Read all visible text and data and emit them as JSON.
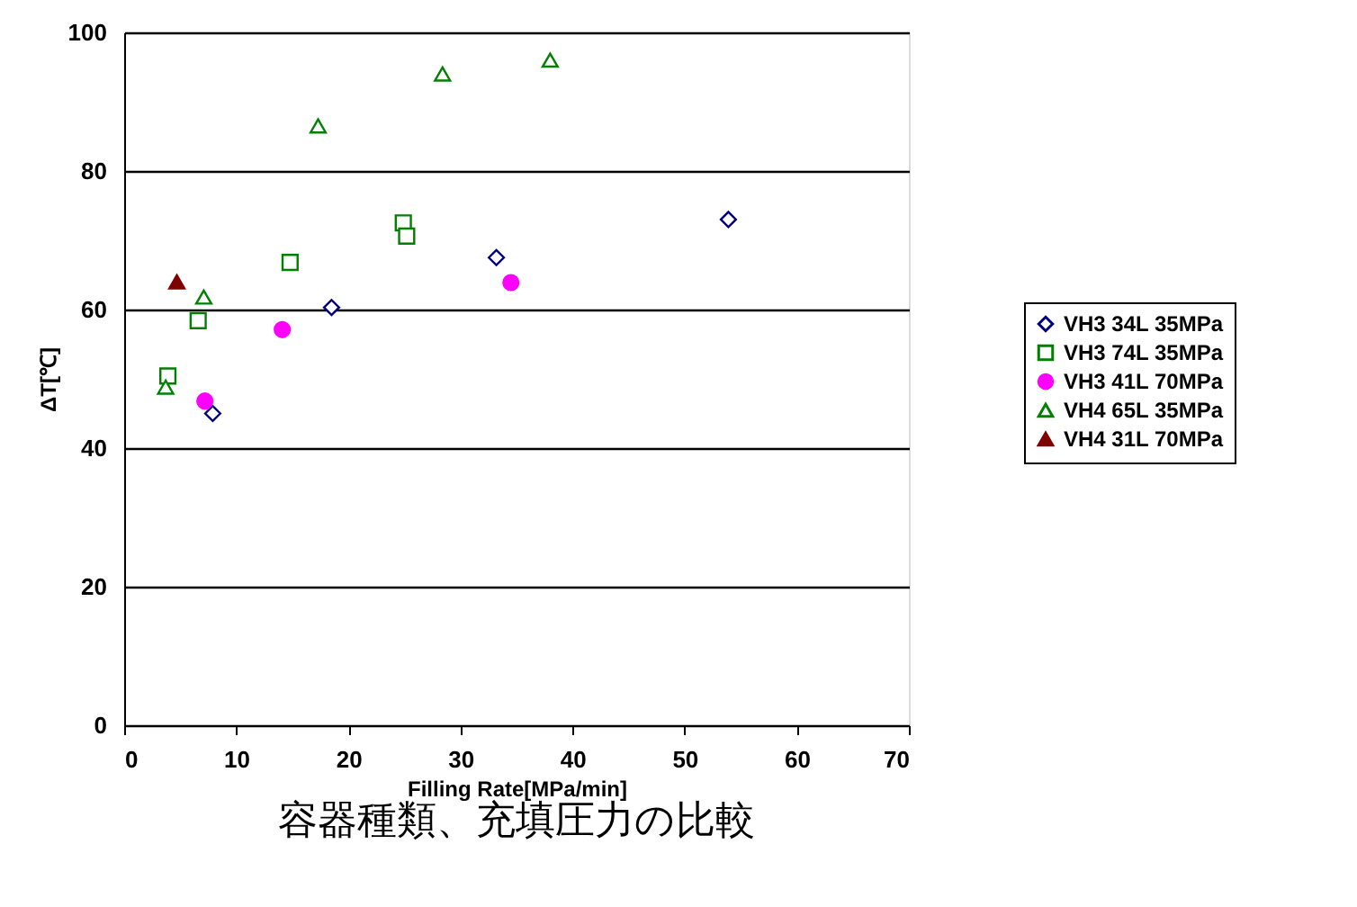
{
  "chart_data": {
    "type": "scatter",
    "title": "容器種類、充填圧力の比較",
    "xlabel": "Filling Rate[MPa/min]",
    "ylabel": "ΔT[℃]",
    "xlim": [
      0,
      70
    ],
    "xticks": [
      0,
      10,
      20,
      30,
      40,
      50,
      60,
      70
    ],
    "ylim": [
      0,
      100
    ],
    "yticks": [
      0,
      20,
      40,
      60,
      80,
      100
    ],
    "grid": "y",
    "legend": "right",
    "series": [
      {
        "name": "VH3 34L 35MPa",
        "color": "#000080",
        "marker": "diamond",
        "x": [
          7.9,
          18.5,
          33.2,
          53.9
        ],
        "values": [
          45,
          60.3,
          67.5,
          73
        ]
      },
      {
        "name": "VH3 74L 35MPa",
        "color": "#008000",
        "marker": "square",
        "x": [
          3.9,
          6.6,
          14.8,
          24.9,
          25.2
        ],
        "values": [
          50.4,
          58.4,
          66.8,
          72.5,
          70.6
        ]
      },
      {
        "name": "VH3 41L 70MPa",
        "color": "#ff00ff",
        "marker": "circle",
        "x": [
          7.2,
          14.1,
          34.5
        ],
        "values": [
          46.8,
          57.1,
          63.9
        ]
      },
      {
        "name": "VH4 65L 35MPa",
        "color": "#008000",
        "marker": "triangle",
        "x": [
          3.7,
          7.1,
          17.3,
          28.4,
          38
        ],
        "values": [
          48.8,
          61.8,
          86.5,
          94,
          96
        ]
      },
      {
        "name": "VH4 31L 70MPa",
        "color": "#800000",
        "marker": "triangle",
        "x": [
          4.7
        ],
        "values": [
          64
        ]
      }
    ]
  }
}
